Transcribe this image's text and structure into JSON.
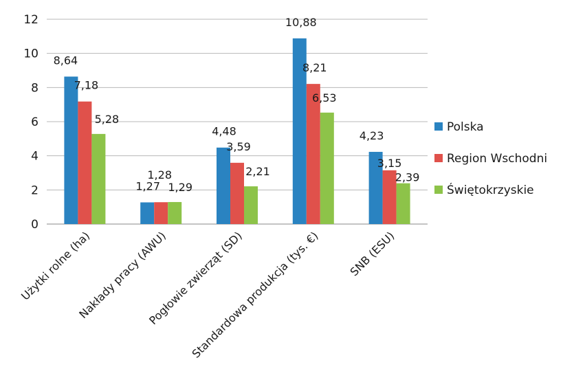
{
  "chart_data": {
    "type": "bar",
    "categories": [
      "Użytki rolne (ha)",
      "Nakłady pracy (AWU)",
      "Pogłowie zwierząt (SD)",
      "Standardowa produkcja (tys. €)",
      "SNB (ESU)"
    ],
    "series": [
      {
        "name": "Polska",
        "color": "#2a83c1",
        "values": [
          8.64,
          1.27,
          4.48,
          10.88,
          4.23
        ],
        "labels": [
          "8,64",
          "1,27",
          "4,48",
          "10,88",
          "4,23"
        ]
      },
      {
        "name": "Region Wschodni",
        "color": "#e0514b",
        "values": [
          7.18,
          1.28,
          3.59,
          8.21,
          3.15
        ],
        "labels": [
          "7,18",
          "1,28",
          "3,59",
          "8,21",
          "3,15"
        ]
      },
      {
        "name": "Świętokrzyskie",
        "color": "#8dc349",
        "values": [
          5.28,
          1.29,
          2.21,
          6.53,
          2.39
        ],
        "labels": [
          "5,28",
          "1,29",
          "2,21",
          "6,53",
          "2,39"
        ]
      }
    ],
    "yticks": [
      "0",
      "2",
      "4",
      "6",
      "8",
      "10",
      "12"
    ],
    "ylim": [
      0,
      12
    ],
    "grid": true,
    "legend_position": "right"
  }
}
